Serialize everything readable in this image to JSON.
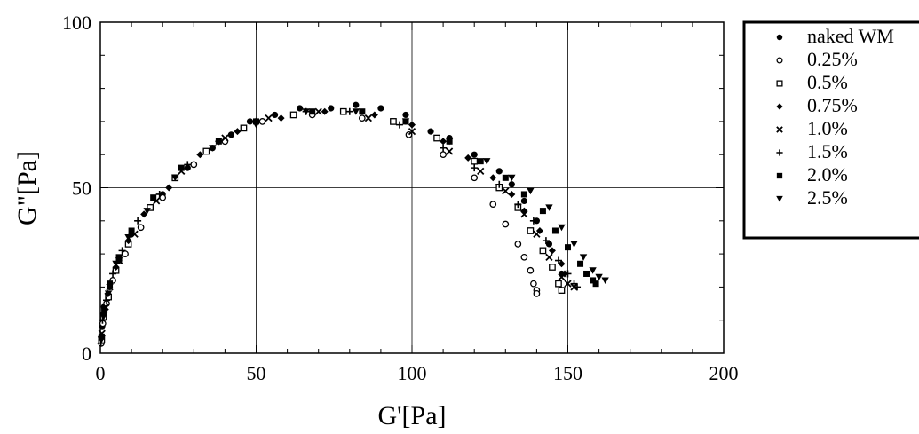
{
  "chart_data": {
    "type": "scatter",
    "xlabel": "G'[Pa]",
    "ylabel": "G\"[Pa]",
    "xlim": [
      0,
      200
    ],
    "ylim": [
      0,
      100
    ],
    "xticks": [
      "0",
      "50",
      "100",
      "150",
      "200"
    ],
    "yticks": [
      "0",
      "50",
      "100"
    ],
    "grid": "x=50,100,150; y=50",
    "legend_position": "right",
    "series": [
      {
        "name": "naked WM",
        "marker": "filled-circle",
        "points": [
          [
            0.3,
            4
          ],
          [
            0.6,
            8
          ],
          [
            1.2,
            14
          ],
          [
            3,
            20
          ],
          [
            6,
            28
          ],
          [
            10,
            36
          ],
          [
            16,
            44
          ],
          [
            20,
            48
          ],
          [
            28,
            56
          ],
          [
            36,
            62
          ],
          [
            42,
            66
          ],
          [
            48,
            70
          ],
          [
            56,
            72
          ],
          [
            64,
            74
          ],
          [
            74,
            74
          ],
          [
            82,
            75
          ],
          [
            90,
            74
          ],
          [
            98,
            72
          ],
          [
            106,
            67
          ],
          [
            112,
            65
          ],
          [
            120,
            60
          ],
          [
            128,
            55
          ],
          [
            132,
            51
          ],
          [
            136,
            46
          ],
          [
            140,
            40
          ],
          [
            144,
            33
          ],
          [
            148,
            24
          ]
        ]
      },
      {
        "name": "0.25%",
        "marker": "open-circle",
        "points": [
          [
            0.3,
            3
          ],
          [
            0.8,
            9
          ],
          [
            2,
            15
          ],
          [
            4,
            22
          ],
          [
            8,
            30
          ],
          [
            13,
            38
          ],
          [
            20,
            47
          ],
          [
            30,
            57
          ],
          [
            40,
            64
          ],
          [
            52,
            70
          ],
          [
            68,
            72
          ],
          [
            84,
            71
          ],
          [
            99,
            66
          ],
          [
            110,
            60
          ],
          [
            120,
            53
          ],
          [
            126,
            45
          ],
          [
            130,
            39
          ],
          [
            134,
            33
          ],
          [
            136,
            29
          ],
          [
            138,
            25
          ],
          [
            139,
            21
          ],
          [
            140,
            19
          ],
          [
            140,
            18
          ]
        ]
      },
      {
        "name": "0.5%",
        "marker": "open-square",
        "points": [
          [
            0.4,
            4
          ],
          [
            1,
            11
          ],
          [
            2.6,
            17
          ],
          [
            5,
            25
          ],
          [
            9,
            33
          ],
          [
            16,
            44
          ],
          [
            24,
            53
          ],
          [
            34,
            61
          ],
          [
            46,
            68
          ],
          [
            62,
            72
          ],
          [
            78,
            73
          ],
          [
            94,
            70
          ],
          [
            108,
            65
          ],
          [
            120,
            58
          ],
          [
            128,
            50
          ],
          [
            134,
            44
          ],
          [
            138,
            37
          ],
          [
            142,
            31
          ],
          [
            145,
            26
          ],
          [
            147,
            21
          ],
          [
            148,
            19
          ]
        ]
      },
      {
        "name": "0.75%",
        "marker": "filled-diamond",
        "points": [
          [
            0.3,
            5
          ],
          [
            1,
            12
          ],
          [
            2.4,
            18
          ],
          [
            5,
            26
          ],
          [
            9,
            34
          ],
          [
            14,
            42
          ],
          [
            22,
            50
          ],
          [
            32,
            60
          ],
          [
            44,
            67
          ],
          [
            58,
            71
          ],
          [
            72,
            73
          ],
          [
            88,
            72
          ],
          [
            100,
            69
          ],
          [
            110,
            64
          ],
          [
            118,
            59
          ],
          [
            126,
            53
          ],
          [
            132,
            48
          ],
          [
            136,
            43
          ],
          [
            141,
            37
          ],
          [
            145,
            31
          ],
          [
            148,
            27
          ],
          [
            149,
            24
          ]
        ]
      },
      {
        "name": "1.0%",
        "marker": "cross",
        "points": [
          [
            0.5,
            6
          ],
          [
            1.6,
            14
          ],
          [
            3,
            20
          ],
          [
            6,
            28
          ],
          [
            11,
            36
          ],
          [
            18,
            46
          ],
          [
            26,
            55
          ],
          [
            40,
            65
          ],
          [
            54,
            71
          ],
          [
            70,
            73
          ],
          [
            86,
            71
          ],
          [
            100,
            67
          ],
          [
            112,
            61
          ],
          [
            122,
            55
          ],
          [
            130,
            49
          ],
          [
            136,
            42
          ],
          [
            140,
            36
          ],
          [
            144,
            29
          ],
          [
            148,
            23
          ],
          [
            150,
            21
          ],
          [
            152,
            20
          ]
        ]
      },
      {
        "name": "1.5%",
        "marker": "plus",
        "points": [
          [
            0.2,
            3
          ],
          [
            0.7,
            10
          ],
          [
            2,
            16
          ],
          [
            4,
            24
          ],
          [
            7,
            31
          ],
          [
            12,
            40
          ],
          [
            19,
            48
          ],
          [
            28,
            57
          ],
          [
            38,
            64
          ],
          [
            50,
            70
          ],
          [
            66,
            73
          ],
          [
            80,
            73
          ],
          [
            96,
            69
          ],
          [
            110,
            62
          ],
          [
            120,
            56
          ],
          [
            128,
            51
          ],
          [
            134,
            45
          ],
          [
            139,
            40
          ],
          [
            143,
            34
          ],
          [
            147,
            28
          ],
          [
            150,
            24
          ],
          [
            152,
            21
          ],
          [
            153,
            20
          ]
        ]
      },
      {
        "name": "2.0%",
        "marker": "filled-square",
        "points": [
          [
            0.4,
            5
          ],
          [
            1.3,
            13
          ],
          [
            3,
            21
          ],
          [
            6,
            29
          ],
          [
            10,
            37
          ],
          [
            17,
            47
          ],
          [
            26,
            56
          ],
          [
            38,
            64
          ],
          [
            50,
            70
          ],
          [
            68,
            73
          ],
          [
            84,
            73
          ],
          [
            98,
            70
          ],
          [
            112,
            64
          ],
          [
            122,
            58
          ],
          [
            130,
            53
          ],
          [
            136,
            48
          ],
          [
            142,
            43
          ],
          [
            146,
            37
          ],
          [
            150,
            32
          ],
          [
            154,
            27
          ],
          [
            156,
            24
          ],
          [
            158,
            22
          ],
          [
            159,
            21
          ]
        ]
      },
      {
        "name": "2.5%",
        "marker": "filled-triangle-down",
        "points": [
          [
            0.3,
            4
          ],
          [
            1,
            11
          ],
          [
            2.6,
            18
          ],
          [
            5,
            27
          ],
          [
            9,
            35
          ],
          [
            15,
            43
          ],
          [
            24,
            53
          ],
          [
            36,
            62
          ],
          [
            50,
            69
          ],
          [
            66,
            73
          ],
          [
            82,
            73
          ],
          [
            98,
            70
          ],
          [
            112,
            64
          ],
          [
            124,
            58
          ],
          [
            132,
            53
          ],
          [
            138,
            49
          ],
          [
            144,
            44
          ],
          [
            148,
            38
          ],
          [
            152,
            33
          ],
          [
            155,
            29
          ],
          [
            158,
            25
          ],
          [
            160,
            23
          ],
          [
            162,
            22
          ]
        ]
      }
    ]
  }
}
